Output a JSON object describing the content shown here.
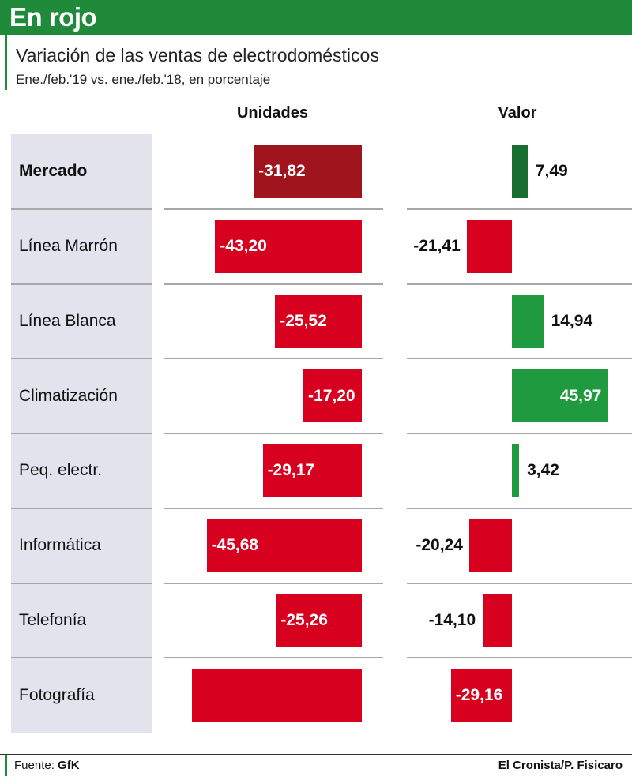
{
  "header": {
    "title": "En rojo"
  },
  "subtitle": "Variación de las ventas de electrodomésticos",
  "subsubtitle": "Ene./feb.'19 vs. ene./feb.'18, en porcentaje",
  "footer": {
    "source_label": "Fuente:",
    "source_value": "GfK",
    "credit": "El Cronista/P. Fisicaro"
  },
  "colors": {
    "header_green": "#1e8a3a",
    "market_units": "#a0151d",
    "market_value": "#186e30",
    "negative": "#d7001e",
    "positive": "#1f9a3e"
  },
  "chart_data": {
    "type": "bar",
    "title": "Variación de las ventas de electrodomésticos",
    "subtitle": "Ene./feb.'19 vs. ene./feb.'18, en porcentaje",
    "categories": [
      "Mercado",
      "Línea Marrón",
      "Línea Blanca",
      "Climatización",
      "Peq. electr.",
      "Informática",
      "Telefonía",
      "Fotografía"
    ],
    "series": [
      {
        "name": "Unidades",
        "values": [
          -31.82,
          -43.2,
          -25.52,
          -17.2,
          -29.17,
          -45.68,
          -25.26,
          -50.0
        ],
        "labels": [
          "-31,82",
          "-43,20",
          "-25,52",
          "-17,20",
          "-29,17",
          "-45,68",
          "-25,26",
          ""
        ]
      },
      {
        "name": "Valor",
        "values": [
          7.49,
          -21.41,
          14.94,
          45.97,
          3.42,
          -20.24,
          -14.1,
          -29.16
        ],
        "labels": [
          "7,49",
          "-21,41",
          "14,94",
          "45,97",
          "3,42",
          "-20,24",
          "-14,10",
          "-29,16"
        ]
      }
    ],
    "highlight_category": "Mercado",
    "units": "%"
  }
}
